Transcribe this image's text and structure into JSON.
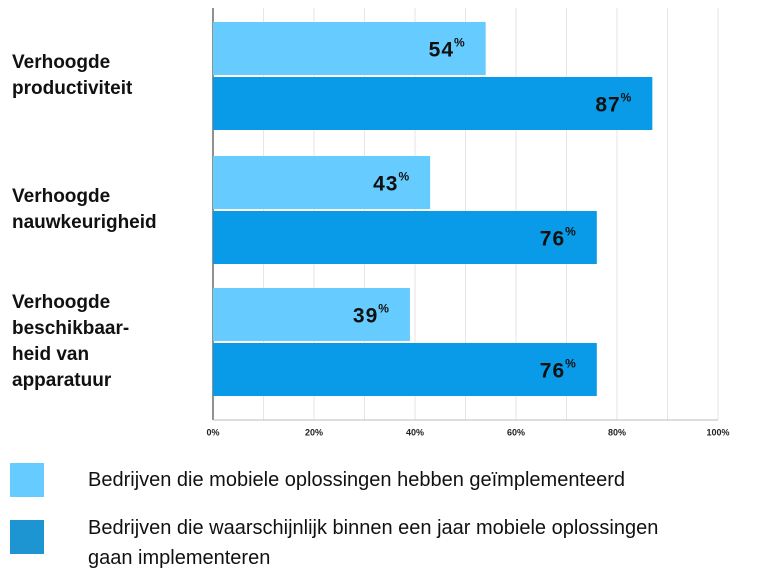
{
  "chart_data": {
    "type": "bar",
    "categories": [
      [
        "Verhoogde",
        "productiviteit"
      ],
      [
        "Verhoogde",
        "nauwkeurigheid"
      ],
      [
        "Verhoogde",
        "beschikbaar-",
        "heid van",
        "apparatuur"
      ]
    ],
    "series": [
      {
        "name": "Bedrijven die mobiele oplossingen hebben geïmplementeerd",
        "color": "#66ccff",
        "values": [
          54,
          43,
          39
        ]
      },
      {
        "name": "Bedrijven die waarschijnlijk binnen een jaar mobiele oplossingen gaan implementeren",
        "color": "#0a9be8",
        "values": [
          87,
          76,
          76
        ]
      }
    ],
    "value_suffix": "%",
    "xlim": [
      0,
      100
    ],
    "xticks": [
      {
        "value": 0,
        "label": "0%"
      },
      {
        "value": 20,
        "label": "20%"
      },
      {
        "value": 40,
        "label": "40%"
      },
      {
        "value": 60,
        "label": "60%"
      },
      {
        "value": 80,
        "label": "80%"
      },
      {
        "value": 100,
        "label": "100%"
      }
    ],
    "xticks_minor": [
      10,
      30,
      50,
      70,
      90
    ],
    "grid": true
  }
}
